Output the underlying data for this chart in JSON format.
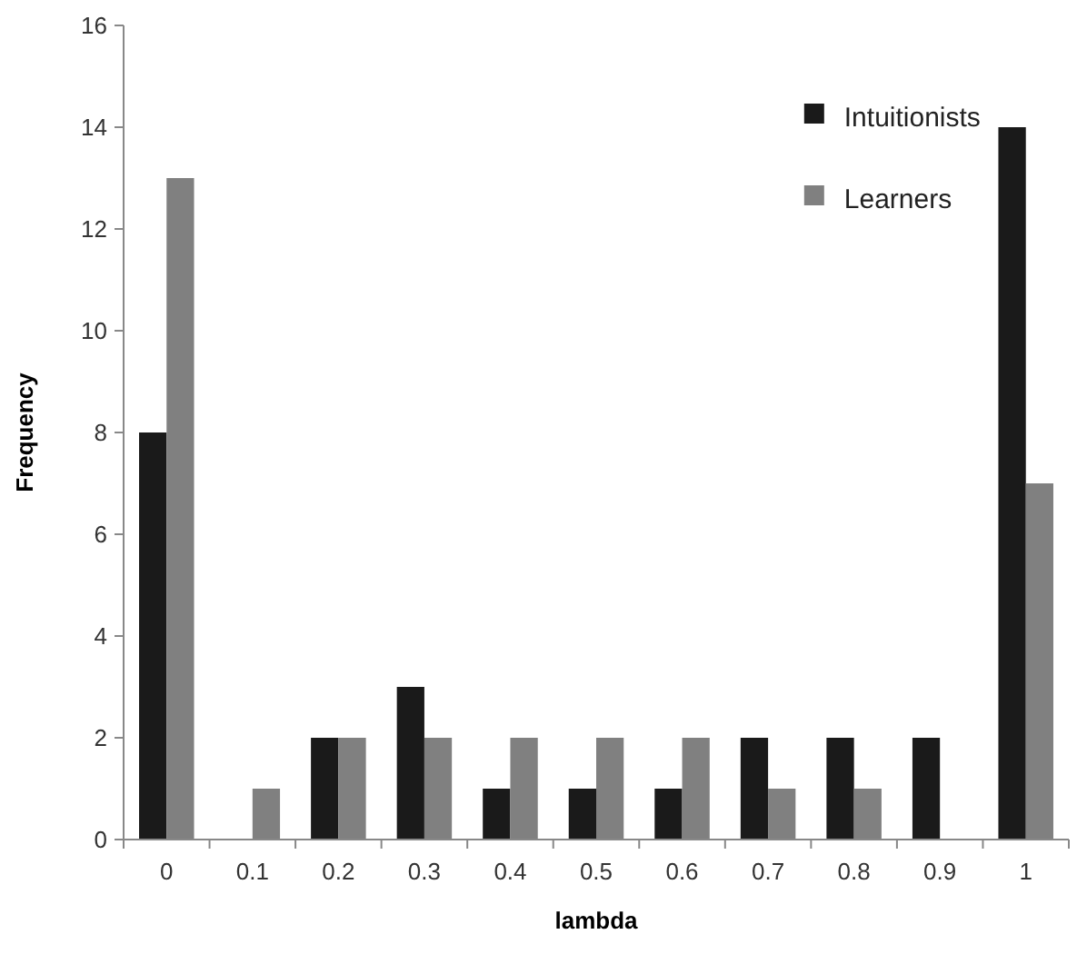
{
  "chart_data": {
    "type": "bar",
    "xlabel": "lambda",
    "ylabel": "Frequency",
    "categories": [
      "0",
      "0.1",
      "0.2",
      "0.3",
      "0.4",
      "0.5",
      "0.6",
      "0.7",
      "0.8",
      "0.9",
      "1"
    ],
    "series": [
      {
        "name": "Intuitionists",
        "color": "#1a1a1a",
        "values": [
          8,
          0,
          2,
          3,
          1,
          1,
          1,
          2,
          2,
          2,
          14
        ]
      },
      {
        "name": "Learners",
        "color": "#808080",
        "values": [
          13,
          1,
          2,
          2,
          2,
          2,
          2,
          1,
          1,
          0,
          7
        ]
      }
    ],
    "ylim": [
      0,
      16
    ],
    "yticks": [
      0,
      2,
      4,
      6,
      8,
      10,
      12,
      14,
      16
    ],
    "legend": "top right",
    "grid": false
  }
}
